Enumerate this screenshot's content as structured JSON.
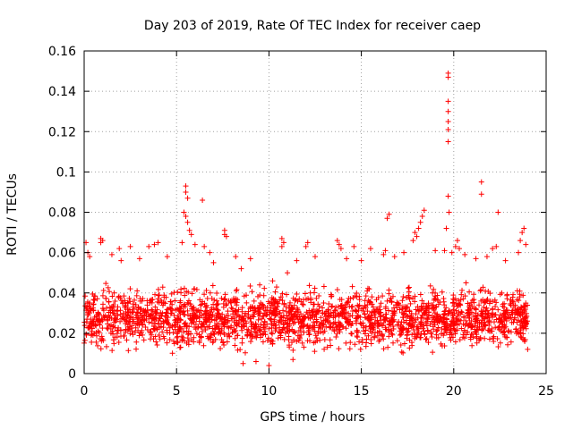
{
  "chart_data": {
    "type": "scatter",
    "title": "Day 203 of 2019, Rate Of TEC Index for receiver caep",
    "xlabel": "GPS time / hours",
    "ylabel": "ROTI / TECUs",
    "xlim": [
      0,
      25
    ],
    "ylim": [
      0,
      0.16
    ],
    "x_ticks": [
      0,
      5,
      10,
      15,
      20,
      25
    ],
    "x_tick_labels": [
      "0",
      "5",
      "10",
      "15",
      "20",
      "25"
    ],
    "y_ticks": [
      0,
      0.02,
      0.04,
      0.06,
      0.08,
      0.1,
      0.12,
      0.14,
      0.16
    ],
    "y_tick_labels": [
      "0",
      "0.02",
      "0.04",
      "0.06",
      "0.08",
      "0.1",
      "0.12",
      "0.14",
      "0.16"
    ],
    "grid": true,
    "marker": "+",
    "color": "#ff0000",
    "series": [
      {
        "name": "ROTI",
        "description_of_bulk": "dense band of points across 0-24 h, mostly between 0.01 and 0.045 TECU/min",
        "bulk_band": {
          "x_start": 0,
          "x_end": 24,
          "low": 0.008,
          "high": 0.045,
          "count": 2200
        },
        "points": [
          [
            19.7,
            0.149
          ],
          [
            19.7,
            0.147
          ],
          [
            19.7,
            0.135
          ],
          [
            19.7,
            0.13
          ],
          [
            19.7,
            0.125
          ],
          [
            19.7,
            0.121
          ],
          [
            19.7,
            0.115
          ],
          [
            19.7,
            0.088
          ],
          [
            19.75,
            0.08
          ],
          [
            19.6,
            0.072
          ],
          [
            5.5,
            0.093
          ],
          [
            5.5,
            0.09
          ],
          [
            5.6,
            0.087
          ],
          [
            5.4,
            0.08
          ],
          [
            5.5,
            0.078
          ],
          [
            5.6,
            0.075
          ],
          [
            5.7,
            0.071
          ],
          [
            5.8,
            0.069
          ],
          [
            6.4,
            0.086
          ],
          [
            5.3,
            0.065
          ],
          [
            21.5,
            0.095
          ],
          [
            21.5,
            0.089
          ],
          [
            22.4,
            0.08
          ],
          [
            16.5,
            0.079
          ],
          [
            16.4,
            0.077
          ],
          [
            18.4,
            0.081
          ],
          [
            18.3,
            0.078
          ],
          [
            18.2,
            0.075
          ],
          [
            18.1,
            0.072
          ],
          [
            17.9,
            0.07
          ],
          [
            17.8,
            0.066
          ],
          [
            18.0,
            0.068
          ],
          [
            16.3,
            0.061
          ],
          [
            16.2,
            0.059
          ],
          [
            15.5,
            0.062
          ],
          [
            0.9,
            0.067
          ],
          [
            0.9,
            0.065
          ],
          [
            1.0,
            0.066
          ],
          [
            7.6,
            0.071
          ],
          [
            7.6,
            0.069
          ],
          [
            7.7,
            0.068
          ],
          [
            4.0,
            0.065
          ],
          [
            3.8,
            0.064
          ],
          [
            3.5,
            0.063
          ],
          [
            2.5,
            0.063
          ],
          [
            1.9,
            0.062
          ],
          [
            10.7,
            0.067
          ],
          [
            10.8,
            0.065
          ],
          [
            10.7,
            0.063
          ],
          [
            13.7,
            0.066
          ],
          [
            13.8,
            0.064
          ],
          [
            13.9,
            0.062
          ],
          [
            14.6,
            0.063
          ],
          [
            12.1,
            0.065
          ],
          [
            12.0,
            0.063
          ],
          [
            23.8,
            0.072
          ],
          [
            23.7,
            0.07
          ],
          [
            23.6,
            0.066
          ],
          [
            23.9,
            0.064
          ],
          [
            23.5,
            0.06
          ],
          [
            20.2,
            0.066
          ],
          [
            20.1,
            0.063
          ],
          [
            20.3,
            0.062
          ],
          [
            19.9,
            0.06
          ],
          [
            19.5,
            0.061
          ],
          [
            22.1,
            0.062
          ],
          [
            22.3,
            0.063
          ],
          [
            21.8,
            0.058
          ],
          [
            0.1,
            0.065
          ],
          [
            0.2,
            0.06
          ],
          [
            0.3,
            0.058
          ],
          [
            6.0,
            0.064
          ],
          [
            6.5,
            0.063
          ],
          [
            6.8,
            0.06
          ],
          [
            8.2,
            0.058
          ],
          [
            9.0,
            0.057
          ],
          [
            11.5,
            0.056
          ],
          [
            12.5,
            0.058
          ],
          [
            14.2,
            0.057
          ],
          [
            15.0,
            0.056
          ],
          [
            16.8,
            0.058
          ],
          [
            17.3,
            0.06
          ],
          [
            19.0,
            0.061
          ],
          [
            20.6,
            0.059
          ],
          [
            21.2,
            0.057
          ],
          [
            22.8,
            0.056
          ],
          [
            4.5,
            0.058
          ],
          [
            3.0,
            0.057
          ],
          [
            1.5,
            0.059
          ],
          [
            2.0,
            0.056
          ],
          [
            9.5,
            0.044
          ],
          [
            10.2,
            0.046
          ],
          [
            11.0,
            0.05
          ],
          [
            8.5,
            0.052
          ],
          [
            7.0,
            0.055
          ],
          [
            10.0,
            0.004
          ],
          [
            8.6,
            0.005
          ],
          [
            9.3,
            0.006
          ],
          [
            11.3,
            0.007
          ],
          [
            24.0,
            0.012
          ]
        ]
      }
    ]
  }
}
